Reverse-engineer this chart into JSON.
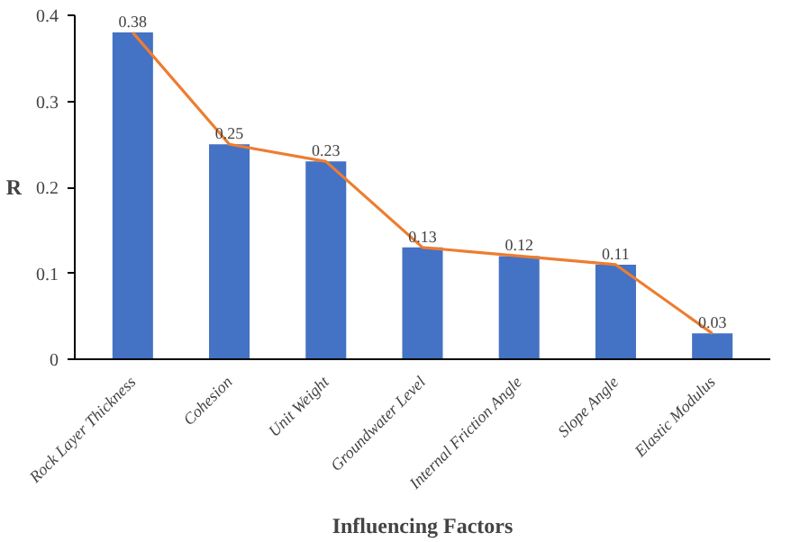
{
  "chart_data": {
    "type": "bar",
    "xlabel": "Influencing Factors",
    "ylabel": "R",
    "categories": [
      "Rock Layer Thickness",
      "Cohesion",
      "Unit Weight",
      "Groundwater Level",
      "Internal Friction Angle",
      "Slope Angle",
      "Elastic Modulus"
    ],
    "series": [
      {
        "color": "#4472c4",
        "values": [
          0.38,
          0.25,
          0.23,
          0.13,
          0.12,
          0.11,
          0.03
        ],
        "value_labels": [
          "0.38",
          "0.25",
          "0.23",
          "0.13",
          "0.12",
          "0.11",
          "0.03"
        ]
      },
      {
        "type": "line",
        "color": "#ed7d31",
        "values": [
          0.38,
          0.25,
          0.23,
          0.13,
          0.12,
          0.11,
          0.03
        ]
      }
    ],
    "ylim": [
      0,
      0.4
    ],
    "yticks": [
      0,
      0.1,
      0.2,
      0.3,
      0.4
    ],
    "grid": false
  }
}
